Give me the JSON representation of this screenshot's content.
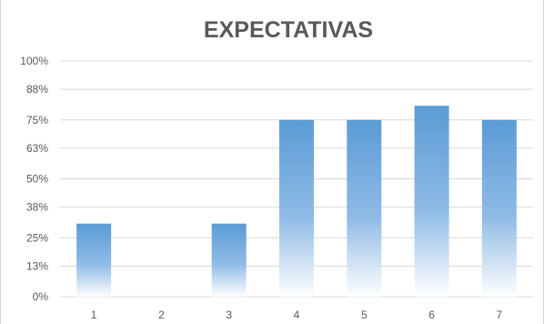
{
  "chart_data": {
    "type": "bar",
    "title": "EXPECTATIVAS",
    "xlabel": "",
    "ylabel": "",
    "categories": [
      "1",
      "2",
      "3",
      "4",
      "5",
      "6",
      "7"
    ],
    "values": [
      31,
      0,
      31,
      75,
      75,
      81,
      75
    ],
    "ylim": [
      0,
      100
    ],
    "y_ticks": [
      0,
      13,
      25,
      38,
      50,
      63,
      75,
      88,
      100
    ],
    "y_tick_labels": [
      "0%",
      "13%",
      "25%",
      "38%",
      "50%",
      "63%",
      "75%",
      "88%",
      "100%"
    ],
    "grid": true,
    "legend": "none",
    "bar_fill": "gradient",
    "colors": {
      "bar_top": "#5b9bd5",
      "bar_bottom": "#ffffff",
      "grid": "#d9d9d9",
      "axis_text": "#595959",
      "title": "#595959"
    }
  }
}
